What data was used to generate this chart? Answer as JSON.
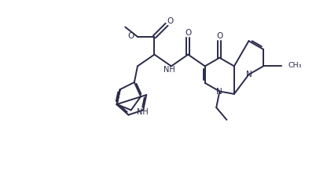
{
  "bg_color": "#ffffff",
  "line_color": "#2a2a4a",
  "line_width": 1.4,
  "figsize": [
    4.16,
    2.22
  ],
  "dpi": 100,
  "xlim": [
    0,
    10
  ],
  "ylim": [
    0,
    5.35
  ]
}
